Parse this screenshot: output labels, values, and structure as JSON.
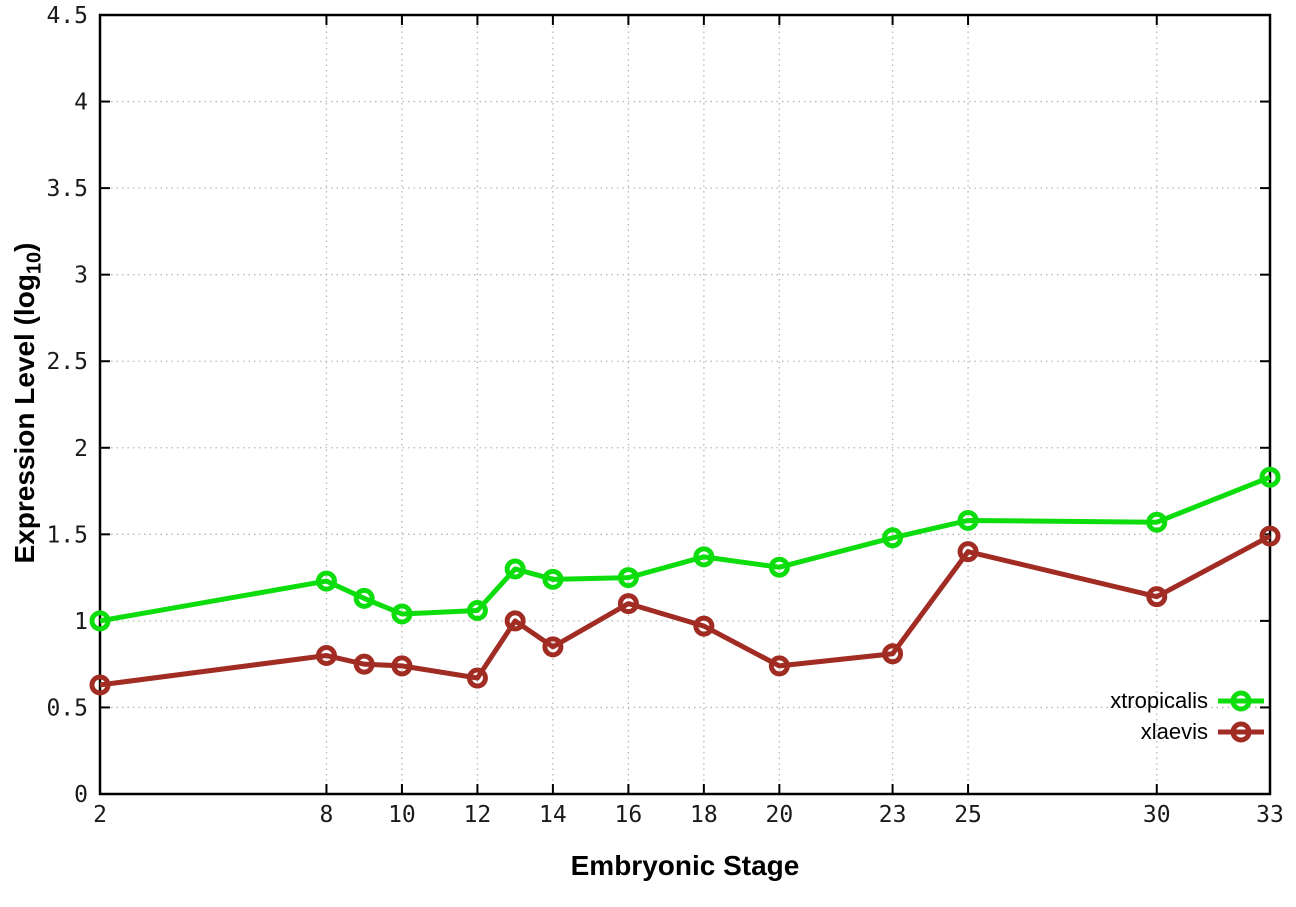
{
  "chart_data": {
    "type": "line",
    "title": "",
    "xlabel": "Embryonic Stage",
    "ylabel": "Expression Level (log10)",
    "ylabel_parts": {
      "prefix": "Expression Level (log",
      "subscript": "10",
      "suffix": ")"
    },
    "x": [
      2,
      8,
      9,
      10,
      12,
      13,
      14,
      16,
      18,
      20,
      23,
      25,
      30,
      33
    ],
    "xticks": [
      2,
      8,
      10,
      12,
      14,
      16,
      18,
      20,
      23,
      25,
      30,
      33
    ],
    "yticks": [
      0,
      0.5,
      1,
      1.5,
      2,
      2.5,
      3,
      3.5,
      4,
      4.5
    ],
    "xlim": [
      2,
      33
    ],
    "ylim": [
      0,
      4.5
    ],
    "grid": true,
    "grid_style": "dotted",
    "legend_position": "inside-bottom-right",
    "series": [
      {
        "name": "xtropicalis",
        "color": "#0ddd0d",
        "values": [
          1.0,
          1.23,
          1.13,
          1.04,
          1.06,
          1.3,
          1.24,
          1.25,
          1.37,
          1.31,
          1.48,
          1.58,
          1.57,
          1.83
        ]
      },
      {
        "name": "xlaevis",
        "color": "#a12c24",
        "values": [
          0.63,
          0.8,
          0.75,
          0.74,
          0.67,
          1.0,
          0.85,
          1.1,
          0.97,
          0.74,
          0.81,
          1.4,
          1.14,
          1.49
        ]
      }
    ],
    "marker": "open-circle",
    "axis_color": "#000000",
    "grid_color": "#b8b8b8",
    "background": "#ffffff"
  }
}
